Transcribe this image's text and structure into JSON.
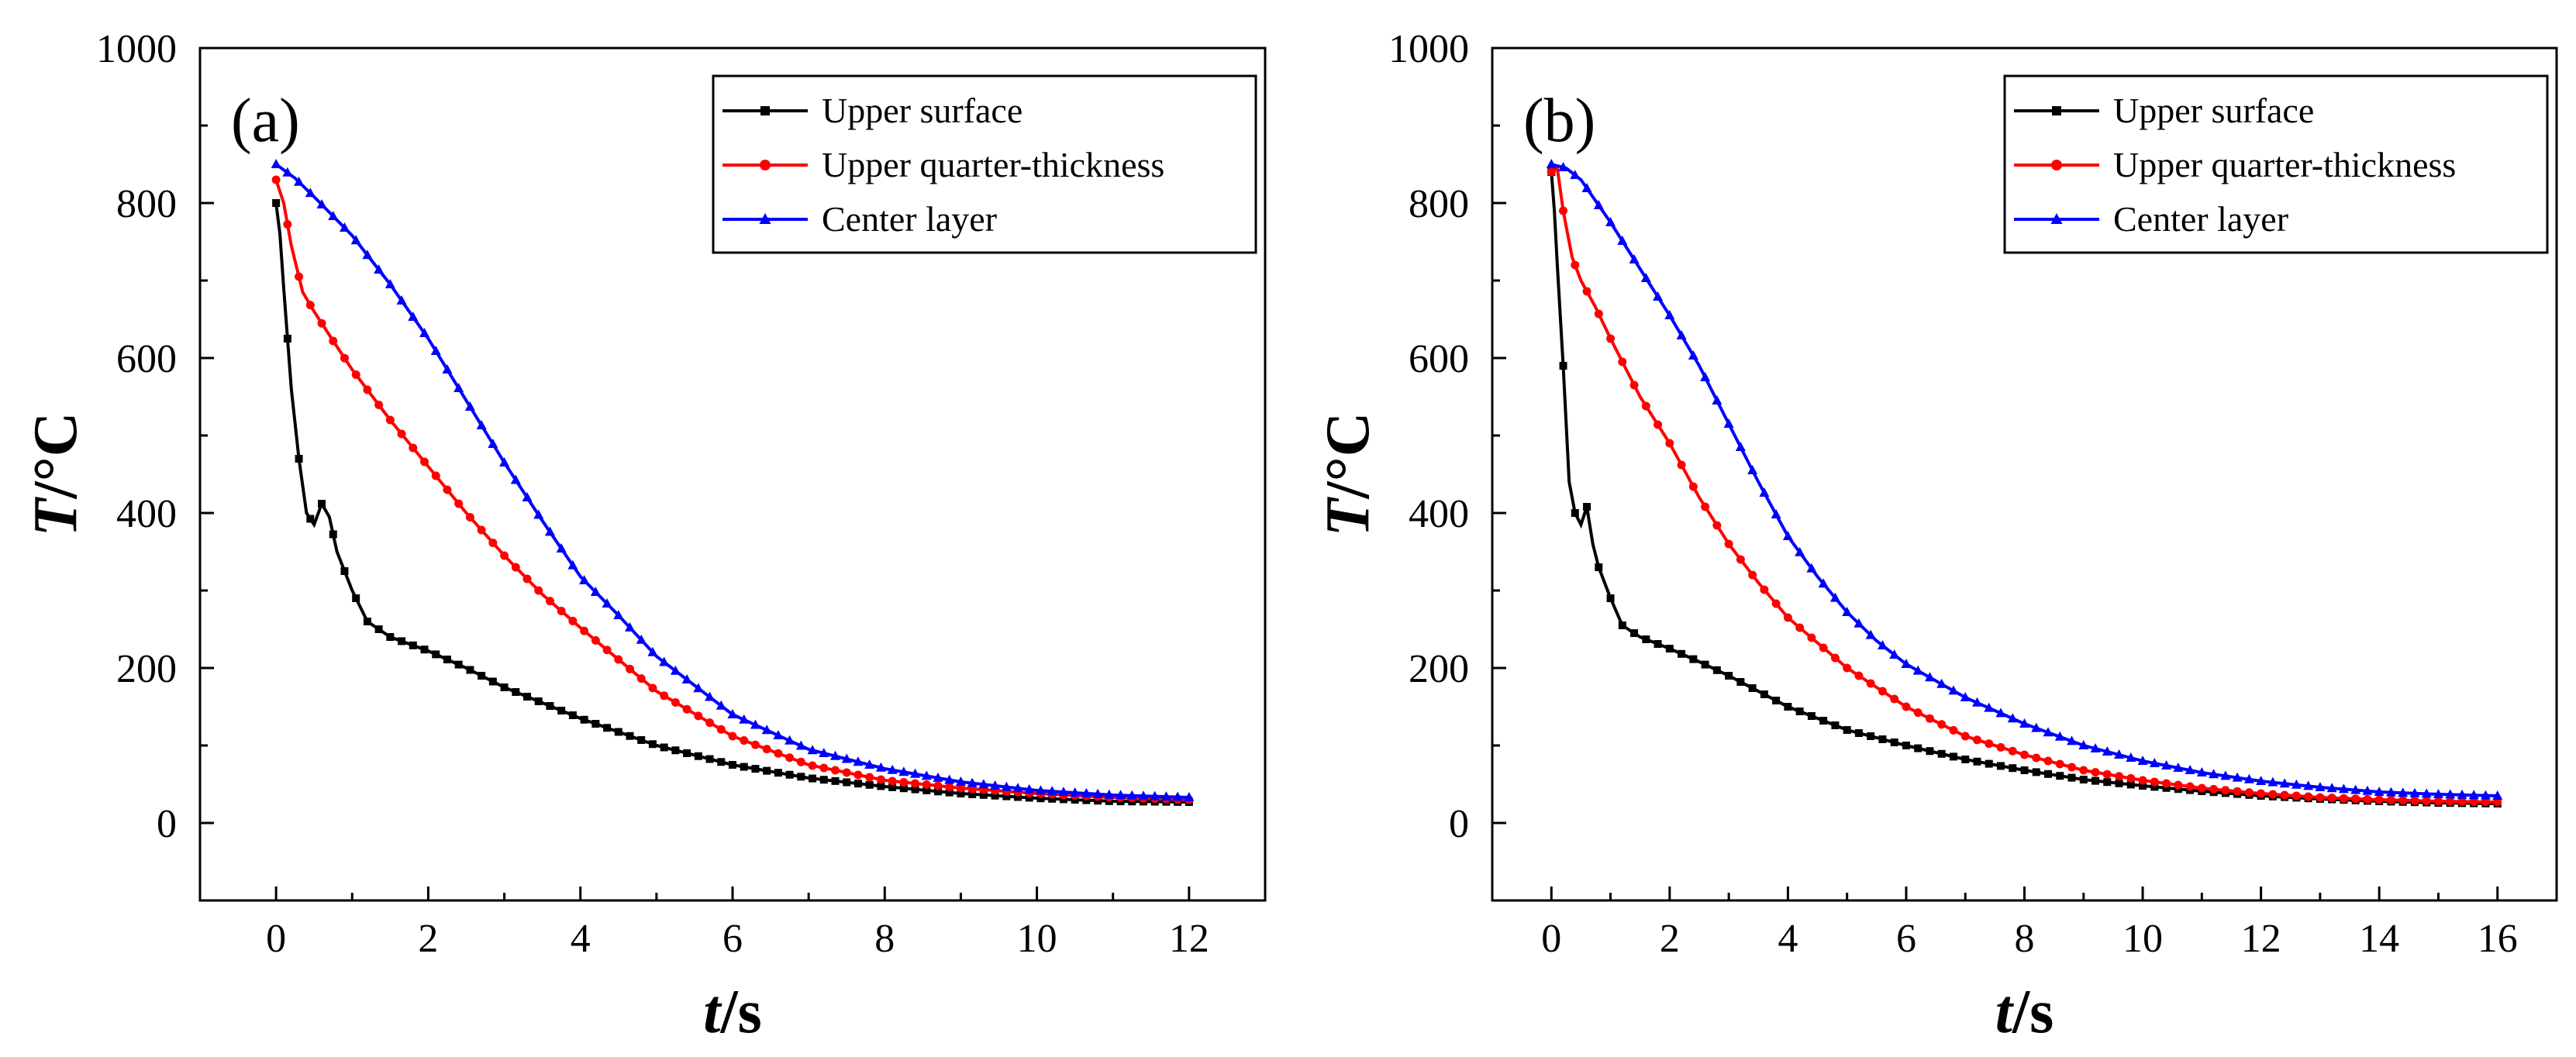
{
  "chart_data": [
    {
      "type": "line",
      "panel_label": "(a)",
      "xlabel_var": "t",
      "xlabel_unit": "/s",
      "ylabel_var": "T",
      "ylabel_unit": "/°C",
      "xlim": [
        -1,
        13
      ],
      "ylim": [
        -100,
        1000
      ],
      "xticks": [
        0,
        2,
        4,
        6,
        8,
        10,
        12
      ],
      "yticks": [
        0,
        200,
        400,
        600,
        800,
        1000
      ],
      "legend_position": "top-right",
      "series": [
        {
          "name": "Upper surface",
          "color": "#000000",
          "marker": "square",
          "x": [
            0,
            0.05,
            0.1,
            0.2,
            0.3,
            0.4,
            0.5,
            0.6,
            0.7,
            0.8,
            1.0,
            1.2,
            1.5,
            2.0,
            2.5,
            3.0,
            4.0,
            5.0,
            6.0,
            7.0,
            8.0,
            9.0,
            10.0,
            11.0,
            12.0
          ],
          "values": [
            800,
            760,
            690,
            560,
            470,
            400,
            385,
            412,
            395,
            350,
            300,
            260,
            240,
            222,
            200,
            175,
            135,
            100,
            75,
            58,
            47,
            38,
            32,
            28,
            27
          ]
        },
        {
          "name": "Upper quarter-thickness",
          "color": "#ff0000",
          "marker": "circle",
          "x": [
            0,
            0.1,
            0.2,
            0.35,
            0.5,
            0.75,
            1.0,
            1.5,
            2.0,
            2.5,
            3.0,
            3.5,
            4.0,
            5.0,
            6.0,
            7.0,
            8.0,
            9.0,
            10.0,
            11.0,
            12.0
          ],
          "values": [
            830,
            800,
            745,
            685,
            660,
            622,
            585,
            520,
            460,
            400,
            345,
            295,
            252,
            170,
            112,
            75,
            55,
            45,
            38,
            33,
            30
          ]
        },
        {
          "name": "Center layer",
          "color": "#0000ff",
          "marker": "triangle",
          "x": [
            0,
            0.25,
            0.5,
            1.0,
            1.5,
            2.0,
            2.5,
            3.0,
            3.5,
            4.0,
            4.5,
            5.0,
            6.0,
            7.0,
            8.0,
            9.0,
            10.0,
            11.0,
            12.0
          ],
          "values": [
            850,
            832,
            808,
            758,
            695,
            625,
            545,
            465,
            390,
            318,
            268,
            215,
            140,
            95,
            70,
            53,
            42,
            36,
            33
          ]
        }
      ]
    },
    {
      "type": "line",
      "panel_label": "(b)",
      "xlabel_var": "t",
      "xlabel_unit": "/s",
      "ylabel_var": "T",
      "ylabel_unit": "/°C",
      "xlim": [
        -1,
        17
      ],
      "ylim": [
        -100,
        1000
      ],
      "xticks": [
        0,
        2,
        4,
        6,
        8,
        10,
        12,
        14,
        16
      ],
      "yticks": [
        0,
        200,
        400,
        600,
        800,
        1000
      ],
      "legend_position": "top-right",
      "series": [
        {
          "name": "Upper surface",
          "color": "#000000",
          "marker": "square",
          "x": [
            0,
            0.05,
            0.1,
            0.2,
            0.3,
            0.4,
            0.5,
            0.6,
            0.7,
            0.8,
            1.0,
            1.2,
            1.5,
            2.0,
            2.5,
            3.0,
            4.0,
            5.0,
            6.0,
            7.0,
            8.0,
            9.0,
            10.0,
            11.0,
            12.0,
            13.0,
            14.0,
            15.0,
            16.0
          ],
          "values": [
            840,
            790,
            720,
            590,
            440,
            400,
            385,
            408,
            360,
            330,
            290,
            255,
            240,
            225,
            208,
            190,
            150,
            120,
            100,
            82,
            68,
            56,
            48,
            41,
            35,
            31,
            28,
            26,
            25
          ]
        },
        {
          "name": "Upper quarter-thickness",
          "color": "#ff0000",
          "marker": "circle",
          "x": [
            0,
            0.1,
            0.2,
            0.35,
            0.5,
            0.75,
            1.0,
            1.5,
            2.0,
            2.5,
            3.0,
            3.5,
            4.0,
            5.0,
            6.0,
            7.0,
            8.0,
            9.0,
            10.0,
            11.0,
            12.0,
            13.0,
            14.0,
            15.0,
            16.0
          ],
          "values": [
            840,
            845,
            790,
            730,
            700,
            665,
            625,
            550,
            490,
            420,
            360,
            310,
            265,
            200,
            150,
            112,
            88,
            68,
            55,
            45,
            38,
            33,
            30,
            28,
            27
          ]
        },
        {
          "name": "Center layer",
          "color": "#0000ff",
          "marker": "triangle",
          "x": [
            0,
            0.25,
            0.5,
            1.0,
            1.5,
            2.0,
            2.5,
            3.0,
            3.5,
            4.0,
            4.5,
            5.0,
            5.5,
            6.0,
            7.0,
            8.0,
            9.0,
            10.0,
            11.0,
            12.0,
            13.0,
            14.0,
            15.0,
            16.0
          ],
          "values": [
            850,
            845,
            830,
            775,
            715,
            655,
            590,
            515,
            440,
            370,
            318,
            272,
            235,
            205,
            162,
            128,
            100,
            80,
            65,
            54,
            46,
            40,
            37,
            35
          ]
        }
      ]
    }
  ]
}
